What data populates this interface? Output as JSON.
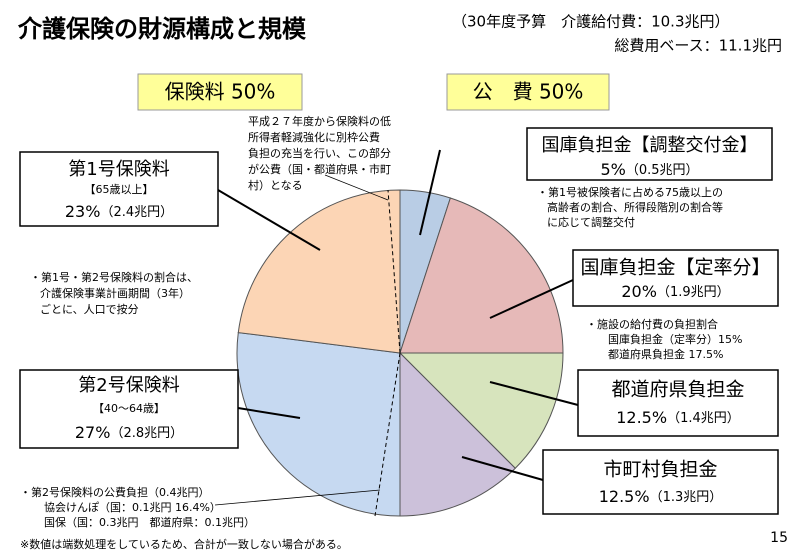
{
  "chart_data": {
    "type": "pie",
    "title": "介護保険の財源構成と規模",
    "budget_note": [
      "（30年度予算　介護給付費：10.3兆円）",
      "総費用ベース：11.1兆円"
    ],
    "group_labels": [
      "保険料 50%",
      "公　費 50%"
    ],
    "categories": [
      "国庫負担金【調整交付金】",
      "国庫負担金【定率分】",
      "都道府県負担金",
      "市町村負担金",
      "第2号保険料",
      "第1号保険料"
    ],
    "sublabels": [
      null,
      null,
      null,
      null,
      "【40～64歳】",
      "【65歳以上】"
    ],
    "values": [
      5,
      20,
      12.5,
      12.5,
      27,
      23
    ],
    "value_labels": [
      "5%",
      "20%",
      "12.5%",
      "12.5%",
      "27%",
      "23%"
    ],
    "amounts": [
      "（0.5兆円）",
      "（1.9兆円）",
      "（1.4兆円）",
      "（1.3兆円）",
      "（2.8兆円）",
      "（2.4兆円）"
    ],
    "colors": [
      "#b9cde5",
      "#e6b9b8",
      "#d7e4bd",
      "#ccc1da",
      "#c6d9f1",
      "#fcd5b5"
    ],
    "notes": [
      [
        "平成２７年度から保険料の低",
        "所得者軽減強化に別枠公費",
        "負担の充当を行い、この部分",
        "が公費（国・都道府県・市町",
        "村）となる"
      ],
      [
        "・第1号被保険者に占める75歳以上の",
        "高齢者の割合、所得段階別の割合等",
        "に応じて調整交付"
      ],
      [
        "・施設の給付費の負担割合",
        "国庫負担金（定率分）15%",
        "都道府県負担金 17.5%"
      ],
      [
        "・第1号・第2号保険料の割合は、",
        "介護保険事業計画期間（3年）",
        "ごとに、人口で按分"
      ],
      [
        "・第2号保険料の公費負担（0.4兆円）",
        "協会けんぽ（国：0.1兆円 16.4%）",
        "国保（国：0.3兆円　都道府県：0.1兆円）"
      ]
    ],
    "footnote": "※数値は端数処理をしているため、合計が一致しない場合がある。",
    "page_number": "15"
  }
}
